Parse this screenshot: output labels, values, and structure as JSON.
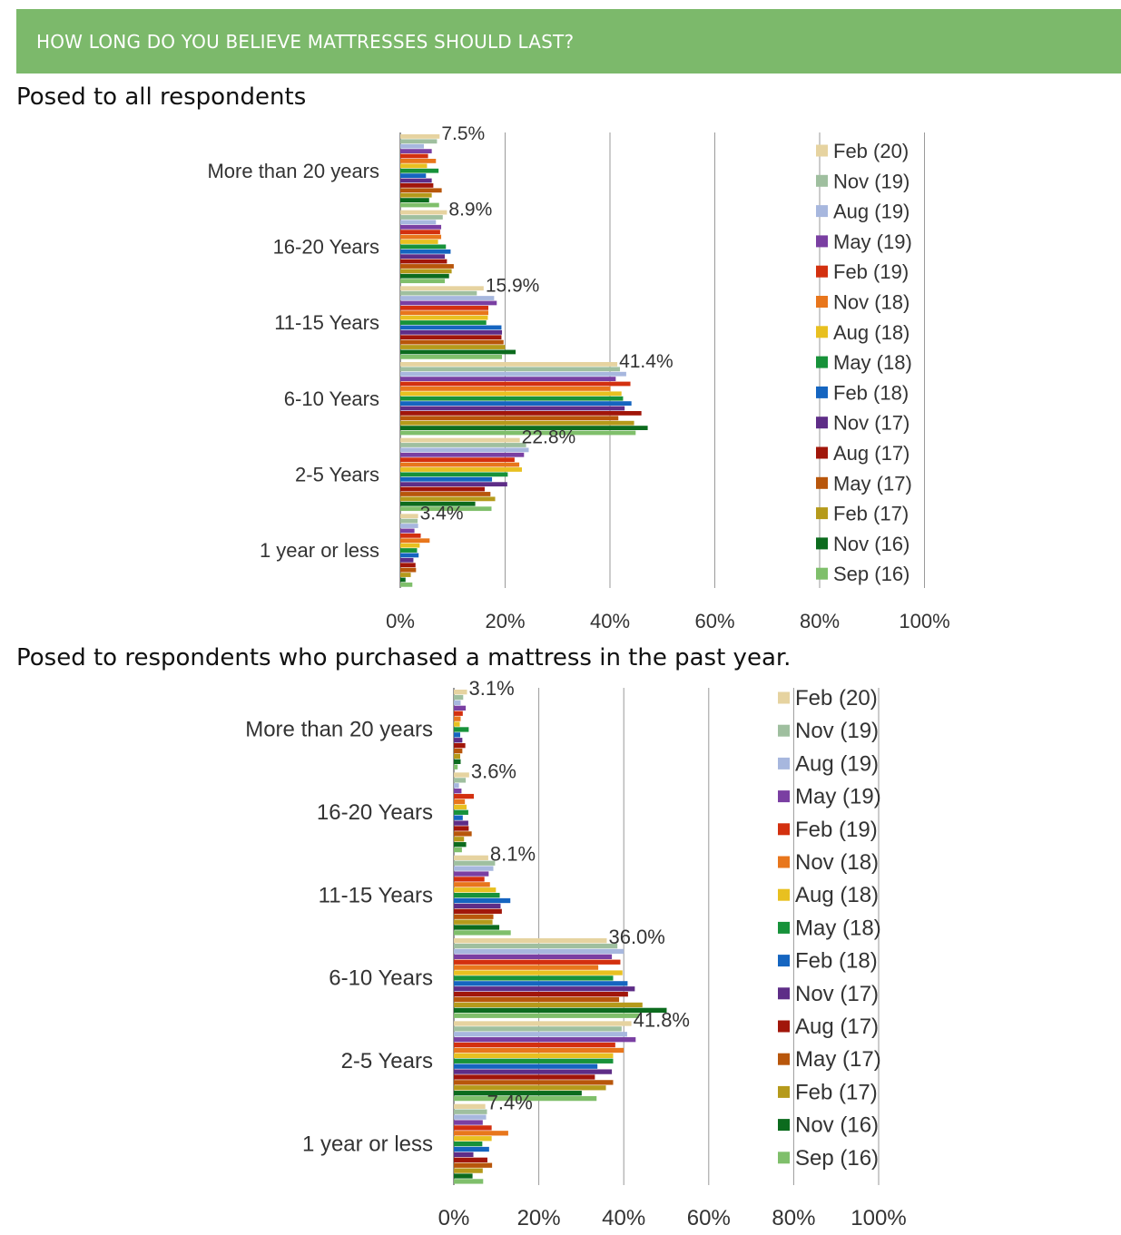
{
  "header": {
    "title": "HOW LONG DO YOU BELIEVE MATTRESSES SHOULD LAST?"
  },
  "section1": {
    "subtitle": "Posed to all respondents"
  },
  "section2": {
    "subtitle": "Posed to respondents who purchased a mattress in the past year."
  },
  "series_colors": [
    "#e6d3a0",
    "#9fbf9f",
    "#a7b7de",
    "#7a3fa2",
    "#d3300f",
    "#e8761c",
    "#e8c020",
    "#17923a",
    "#1565c0",
    "#5e2d87",
    "#a1160a",
    "#b8560b",
    "#b59a1b",
    "#0c6b1e",
    "#7fbf6b"
  ],
  "chart_data": [
    {
      "type": "bar",
      "orientation": "horizontal",
      "categories": [
        "More than 20 years",
        "16-20 Years",
        "11-15 Years",
        "6-10 Years",
        "2-5 Years",
        "1 year or less"
      ],
      "xlim": [
        0,
        100
      ],
      "xticks": [
        "0%",
        "20%",
        "40%",
        "60%",
        "80%",
        "100%"
      ],
      "grid": true,
      "legend_position": "right",
      "data_labels": [
        "7.5%",
        "8.9%",
        "15.9%",
        "41.4%",
        "22.8%",
        "3.4%"
      ],
      "series": [
        {
          "name": "Feb (20)",
          "values": [
            7.5,
            8.9,
            15.9,
            41.4,
            22.8,
            3.4
          ]
        },
        {
          "name": "Nov (19)",
          "values": [
            7.0,
            8.1,
            14.6,
            41.9,
            24.0,
            3.3
          ]
        },
        {
          "name": "Aug (19)",
          "values": [
            4.5,
            6.8,
            17.9,
            43.1,
            24.5,
            3.4
          ]
        },
        {
          "name": "May (19)",
          "values": [
            6.0,
            7.8,
            18.4,
            41.1,
            23.6,
            2.7
          ]
        },
        {
          "name": "Feb (19)",
          "values": [
            5.3,
            7.6,
            16.8,
            43.9,
            21.8,
            3.9
          ]
        },
        {
          "name": "Nov (18)",
          "values": [
            6.8,
            7.8,
            16.8,
            40.1,
            22.7,
            5.6
          ]
        },
        {
          "name": "Aug (18)",
          "values": [
            5.1,
            7.2,
            16.7,
            42.2,
            23.2,
            3.7
          ]
        },
        {
          "name": "May (18)",
          "values": [
            7.3,
            8.7,
            16.4,
            42.5,
            20.5,
            3.2
          ]
        },
        {
          "name": "Feb (18)",
          "values": [
            4.9,
            9.6,
            19.3,
            44.1,
            17.5,
            3.5
          ]
        },
        {
          "name": "Nov (17)",
          "values": [
            6.0,
            8.5,
            19.4,
            42.8,
            20.4,
            2.5
          ]
        },
        {
          "name": "Aug (17)",
          "values": [
            6.3,
            8.9,
            19.3,
            46.0,
            16.1,
            2.9
          ]
        },
        {
          "name": "May (17)",
          "values": [
            7.9,
            10.2,
            19.7,
            41.6,
            17.2,
            3.0
          ]
        },
        {
          "name": "Feb (17)",
          "values": [
            6.0,
            9.8,
            20.0,
            44.6,
            18.1,
            2.0
          ]
        },
        {
          "name": "Nov (16)",
          "values": [
            5.5,
            9.3,
            22.0,
            47.2,
            14.3,
            1.0
          ]
        },
        {
          "name": "Sep (16)",
          "values": [
            7.4,
            8.5,
            19.4,
            44.9,
            17.4,
            2.3
          ]
        }
      ]
    },
    {
      "type": "bar",
      "orientation": "horizontal",
      "categories": [
        "More than 20 years",
        "16-20 Years",
        "11-15 Years",
        "6-10 Years",
        "2-5 Years",
        "1 year or less"
      ],
      "xlim": [
        0,
        100
      ],
      "xticks": [
        "0%",
        "20%",
        "40%",
        "60%",
        "80%",
        "100%"
      ],
      "grid": true,
      "legend_position": "right",
      "data_labels": [
        "3.1%",
        "3.6%",
        "8.1%",
        "36.0%",
        "41.8%",
        "7.4%"
      ],
      "series": [
        {
          "name": "Feb (20)",
          "values": [
            3.1,
            3.6,
            8.1,
            36.0,
            41.8,
            7.4
          ]
        },
        {
          "name": "Nov (19)",
          "values": [
            2.2,
            2.8,
            9.7,
            38.5,
            39.5,
            7.8
          ]
        },
        {
          "name": "Aug (19)",
          "values": [
            1.6,
            1.2,
            9.3,
            40.0,
            40.8,
            7.6
          ]
        },
        {
          "name": "May (19)",
          "values": [
            2.8,
            1.8,
            8.2,
            37.2,
            42.8,
            6.8
          ]
        },
        {
          "name": "Feb (19)",
          "values": [
            2.1,
            4.7,
            7.2,
            39.2,
            38.0,
            8.9
          ]
        },
        {
          "name": "Nov (18)",
          "values": [
            1.6,
            2.6,
            8.5,
            34.0,
            40.0,
            12.8
          ]
        },
        {
          "name": "Aug (18)",
          "values": [
            1.4,
            3.0,
            9.9,
            39.7,
            37.5,
            8.9
          ]
        },
        {
          "name": "May (18)",
          "values": [
            3.5,
            3.4,
            10.8,
            37.5,
            37.5,
            6.7
          ]
        },
        {
          "name": "Feb (18)",
          "values": [
            1.5,
            2.1,
            13.3,
            40.9,
            33.8,
            8.3
          ]
        },
        {
          "name": "Nov (17)",
          "values": [
            2.0,
            3.4,
            11.0,
            42.6,
            37.2,
            4.6
          ]
        },
        {
          "name": "Aug (17)",
          "values": [
            2.7,
            3.5,
            11.3,
            41.0,
            33.2,
            7.9
          ]
        },
        {
          "name": "May (17)",
          "values": [
            2.0,
            4.2,
            9.3,
            38.9,
            37.5,
            9.0
          ]
        },
        {
          "name": "Feb (17)",
          "values": [
            1.5,
            2.4,
            9.1,
            44.4,
            35.8,
            6.8
          ]
        },
        {
          "name": "Nov (16)",
          "values": [
            1.6,
            2.9,
            10.7,
            50.1,
            30.1,
            4.4
          ]
        },
        {
          "name": "Sep (16)",
          "values": [
            0.9,
            1.9,
            13.4,
            43.6,
            33.6,
            6.9
          ]
        }
      ]
    }
  ]
}
